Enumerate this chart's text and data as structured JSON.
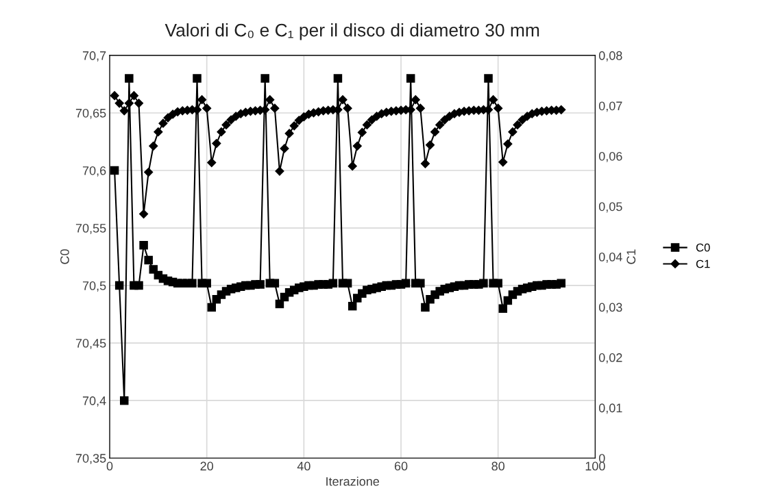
{
  "chart_data": {
    "type": "line",
    "title": "Valori di C₀ e C₁ per il disco di diametro 30 mm",
    "xlabel": "Iterazione",
    "ylabel": "C0",
    "y2label": "C1",
    "x": [
      1,
      2,
      3,
      4,
      5,
      6,
      7,
      8,
      9,
      10,
      11,
      12,
      13,
      14,
      15,
      16,
      17,
      18,
      19,
      20,
      21,
      22,
      23,
      24,
      25,
      26,
      27,
      28,
      29,
      30,
      31,
      32,
      33,
      34,
      35,
      36,
      37,
      38,
      39,
      40,
      41,
      42,
      43,
      44,
      45,
      46,
      47,
      48,
      49,
      50,
      51,
      52,
      53,
      54,
      55,
      56,
      57,
      58,
      59,
      60,
      61,
      62,
      63,
      64,
      65,
      66,
      67,
      68,
      69,
      70,
      71,
      72,
      73,
      74,
      75,
      76,
      77,
      78,
      79,
      80,
      81,
      82,
      83,
      84,
      85,
      86,
      87,
      88,
      89,
      90,
      91,
      92,
      93
    ],
    "series": [
      {
        "name": "C0",
        "color": "#000000",
        "marker": "square",
        "values": [
          70.6,
          70.5,
          70.4,
          70.68,
          70.5,
          70.5,
          70.535,
          70.522,
          70.514,
          70.509,
          70.506,
          70.504,
          70.503,
          70.502,
          70.502,
          70.502,
          70.502,
          70.68,
          70.502,
          70.502,
          70.481,
          70.488,
          70.492,
          70.495,
          70.497,
          70.498,
          70.499,
          70.5,
          70.5,
          70.501,
          70.501,
          70.68,
          70.502,
          70.502,
          70.484,
          70.49,
          70.494,
          70.496,
          70.498,
          70.499,
          70.5,
          70.5,
          70.501,
          70.501,
          70.501,
          70.502,
          70.68,
          70.502,
          70.502,
          70.482,
          70.489,
          70.493,
          70.496,
          70.497,
          70.498,
          70.499,
          70.5,
          70.5,
          70.501,
          70.501,
          70.502,
          70.68,
          70.502,
          70.502,
          70.481,
          70.488,
          70.492,
          70.495,
          70.497,
          70.498,
          70.499,
          70.5,
          70.5,
          70.501,
          70.501,
          70.501,
          70.502,
          70.68,
          70.502,
          70.502,
          70.48,
          70.487,
          70.492,
          70.495,
          70.497,
          70.498,
          70.499,
          70.5,
          70.5,
          70.501,
          70.501,
          70.501,
          70.502
        ]
      },
      {
        "name": "C1",
        "color": "#000000",
        "marker": "diamond",
        "axis": "y2",
        "values": [
          0.072,
          0.0705,
          0.069,
          0.0705,
          0.072,
          0.0705,
          0.0485,
          0.0568,
          0.062,
          0.0648,
          0.0665,
          0.0676,
          0.0683,
          0.0688,
          0.069,
          0.0691,
          0.0692,
          0.0692,
          0.0712,
          0.0695,
          0.0587,
          0.0625,
          0.0648,
          0.0662,
          0.0672,
          0.0679,
          0.0684,
          0.0687,
          0.0689,
          0.069,
          0.0691,
          0.0692,
          0.0712,
          0.0695,
          0.057,
          0.0615,
          0.0645,
          0.066,
          0.0671,
          0.0678,
          0.0683,
          0.0686,
          0.0688,
          0.069,
          0.0691,
          0.0692,
          0.0692,
          0.0712,
          0.0695,
          0.058,
          0.062,
          0.0647,
          0.0662,
          0.0672,
          0.0679,
          0.0684,
          0.0687,
          0.0689,
          0.069,
          0.0691,
          0.0692,
          0.0692,
          0.0712,
          0.0695,
          0.0585,
          0.0622,
          0.0648,
          0.0662,
          0.0672,
          0.0679,
          0.0684,
          0.0687,
          0.0689,
          0.069,
          0.0691,
          0.0691,
          0.0692,
          0.0692,
          0.0712,
          0.0695,
          0.0588,
          0.0624,
          0.0648,
          0.0662,
          0.0672,
          0.0679,
          0.0684,
          0.0687,
          0.0689,
          0.069,
          0.0691,
          0.0691,
          0.0692
        ]
      }
    ],
    "xlim": [
      0,
      100
    ],
    "xticks": [
      0,
      20,
      40,
      60,
      80,
      100
    ],
    "ylim": [
      70.35,
      70.7
    ],
    "yticks": [
      {
        "value": 70.35,
        "label": "70,35"
      },
      {
        "value": 70.4,
        "label": "70,4"
      },
      {
        "value": 70.45,
        "label": "70,45"
      },
      {
        "value": 70.5,
        "label": "70,5"
      },
      {
        "value": 70.55,
        "label": "70,55"
      },
      {
        "value": 70.6,
        "label": "70,6"
      },
      {
        "value": 70.65,
        "label": "70,65"
      },
      {
        "value": 70.7,
        "label": "70,7"
      }
    ],
    "y2lim": [
      0,
      0.08
    ],
    "y2ticks": [
      0,
      {
        "value": 0.01,
        "label": "0,01"
      },
      {
        "value": 0.02,
        "label": "0,02"
      },
      {
        "value": 0.03,
        "label": "0,03"
      },
      {
        "value": 0.04,
        "label": "0,04"
      },
      {
        "value": 0.05,
        "label": "0,05"
      },
      {
        "value": 0.06,
        "label": "0,06"
      },
      {
        "value": 0.07,
        "label": "0,07"
      },
      {
        "value": 0.08,
        "label": "0,08"
      }
    ],
    "grid": true,
    "legend": "right",
    "line_style": "solid"
  }
}
